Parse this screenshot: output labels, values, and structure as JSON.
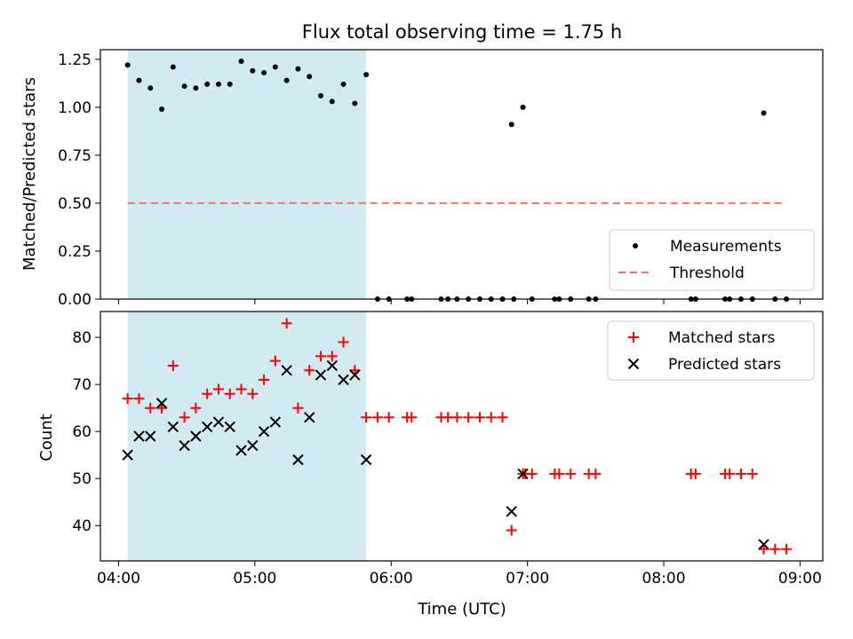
{
  "figure": {
    "title": "Flux total observing time = 1.75 h",
    "xlabel": "Time (UTC)"
  },
  "colors": {
    "shade": "#add8e6",
    "measurement": "#000000",
    "threshold": "#ff6b6b",
    "matched": "#ff0000",
    "predicted": "#000000"
  },
  "chart_data": [
    {
      "type": "scatter",
      "panel": "top",
      "ylabel": "Matched/Predicted stars",
      "xlim": [
        "03:52",
        "09:10"
      ],
      "ylim": [
        0,
        1.3
      ],
      "xticks": [
        "04:00",
        "05:00",
        "06:00",
        "07:00",
        "08:00",
        "09:00"
      ],
      "yticks": [
        "0.00",
        "0.25",
        "0.50",
        "0.75",
        "1.00",
        "1.25"
      ],
      "shaded_span": [
        "04:04",
        "05:49"
      ],
      "legend_position": "lower right",
      "series": [
        {
          "name": "Measurements",
          "marker": "dot",
          "points": [
            [
              "04:04",
              1.22
            ],
            [
              "04:09",
              1.14
            ],
            [
              "04:14",
              1.1
            ],
            [
              "04:19",
              0.99
            ],
            [
              "04:24",
              1.21
            ],
            [
              "04:29",
              1.11
            ],
            [
              "04:34",
              1.1
            ],
            [
              "04:39",
              1.12
            ],
            [
              "04:44",
              1.12
            ],
            [
              "04:49",
              1.12
            ],
            [
              "04:54",
              1.24
            ],
            [
              "04:59",
              1.19
            ],
            [
              "05:04",
              1.18
            ],
            [
              "05:09",
              1.21
            ],
            [
              "05:14",
              1.14
            ],
            [
              "05:19",
              1.2
            ],
            [
              "05:24",
              1.16
            ],
            [
              "05:29",
              1.06
            ],
            [
              "05:34",
              1.03
            ],
            [
              "05:39",
              1.12
            ],
            [
              "05:44",
              1.02
            ],
            [
              "05:49",
              1.17
            ],
            [
              "05:54",
              0
            ],
            [
              "05:59",
              0
            ],
            [
              "06:07",
              0
            ],
            [
              "06:09",
              0
            ],
            [
              "06:22",
              0
            ],
            [
              "06:25",
              0
            ],
            [
              "06:29",
              0
            ],
            [
              "06:34",
              0
            ],
            [
              "06:39",
              0
            ],
            [
              "06:44",
              0
            ],
            [
              "06:49",
              0
            ],
            [
              "06:54",
              0
            ],
            [
              "07:02",
              0
            ],
            [
              "07:12",
              0
            ],
            [
              "07:14",
              0
            ],
            [
              "07:19",
              0
            ],
            [
              "07:27",
              0
            ],
            [
              "07:30",
              0
            ],
            [
              "08:12",
              0
            ],
            [
              "08:14",
              0
            ],
            [
              "08:27",
              0
            ],
            [
              "08:29",
              0
            ],
            [
              "08:34",
              0
            ],
            [
              "08:39",
              0
            ],
            [
              "08:49",
              0
            ],
            [
              "08:54",
              0
            ],
            [
              "06:53",
              0.91
            ],
            [
              "06:58",
              1.0
            ],
            [
              "08:44",
              0.97
            ]
          ]
        },
        {
          "name": "Threshold",
          "style": "dashed-line",
          "x": [
            "04:04",
            "08:54"
          ],
          "y": [
            0.5,
            0.5
          ]
        }
      ]
    },
    {
      "type": "scatter",
      "panel": "bottom",
      "ylabel": "Count",
      "xlim": [
        "03:52",
        "09:10"
      ],
      "ylim": [
        32.5,
        85.5
      ],
      "xticks": [
        "04:00",
        "05:00",
        "06:00",
        "07:00",
        "08:00",
        "09:00"
      ],
      "yticks": [
        "40",
        "50",
        "60",
        "70",
        "80"
      ],
      "shaded_span": [
        "04:04",
        "05:49"
      ],
      "legend_position": "upper right",
      "series": [
        {
          "name": "Matched stars",
          "marker": "plus",
          "points": [
            [
              "04:04",
              67
            ],
            [
              "04:09",
              67
            ],
            [
              "04:14",
              65
            ],
            [
              "04:19",
              65
            ],
            [
              "04:24",
              74
            ],
            [
              "04:29",
              63
            ],
            [
              "04:34",
              65
            ],
            [
              "04:39",
              68
            ],
            [
              "04:44",
              69
            ],
            [
              "04:49",
              68
            ],
            [
              "04:54",
              69
            ],
            [
              "04:59",
              68
            ],
            [
              "05:04",
              71
            ],
            [
              "05:09",
              75
            ],
            [
              "05:14",
              83
            ],
            [
              "05:19",
              65
            ],
            [
              "05:24",
              73
            ],
            [
              "05:29",
              76
            ],
            [
              "05:34",
              76
            ],
            [
              "05:39",
              79
            ],
            [
              "05:44",
              73
            ],
            [
              "05:49",
              63
            ],
            [
              "05:54",
              63
            ],
            [
              "05:59",
              63
            ],
            [
              "06:07",
              63
            ],
            [
              "06:09",
              63
            ],
            [
              "06:22",
              63
            ],
            [
              "06:25",
              63
            ],
            [
              "06:29",
              63
            ],
            [
              "06:34",
              63
            ],
            [
              "06:39",
              63
            ],
            [
              "06:44",
              63
            ],
            [
              "06:49",
              63
            ],
            [
              "06:53",
              39
            ],
            [
              "06:58",
              51
            ],
            [
              "06:59",
              51
            ],
            [
              "07:02",
              51
            ],
            [
              "07:12",
              51
            ],
            [
              "07:14",
              51
            ],
            [
              "07:19",
              51
            ],
            [
              "07:27",
              51
            ],
            [
              "07:30",
              51
            ],
            [
              "08:12",
              51
            ],
            [
              "08:14",
              51
            ],
            [
              "08:27",
              51
            ],
            [
              "08:29",
              51
            ],
            [
              "08:34",
              51
            ],
            [
              "08:39",
              51
            ],
            [
              "08:44",
              35
            ],
            [
              "08:49",
              35
            ],
            [
              "08:54",
              35
            ]
          ]
        },
        {
          "name": "Predicted stars",
          "marker": "x",
          "points": [
            [
              "04:04",
              55
            ],
            [
              "04:09",
              59
            ],
            [
              "04:14",
              59
            ],
            [
              "04:19",
              66
            ],
            [
              "04:24",
              61
            ],
            [
              "04:29",
              57
            ],
            [
              "04:34",
              59
            ],
            [
              "04:39",
              61
            ],
            [
              "04:44",
              62
            ],
            [
              "04:49",
              61
            ],
            [
              "04:54",
              56
            ],
            [
              "04:59",
              57
            ],
            [
              "05:04",
              60
            ],
            [
              "05:09",
              62
            ],
            [
              "05:14",
              73
            ],
            [
              "05:19",
              54
            ],
            [
              "05:24",
              63
            ],
            [
              "05:29",
              72
            ],
            [
              "05:34",
              74
            ],
            [
              "05:39",
              71
            ],
            [
              "05:44",
              72
            ],
            [
              "05:49",
              54
            ],
            [
              "06:53",
              43
            ],
            [
              "06:58",
              51
            ],
            [
              "08:44",
              36
            ]
          ]
        }
      ]
    }
  ]
}
